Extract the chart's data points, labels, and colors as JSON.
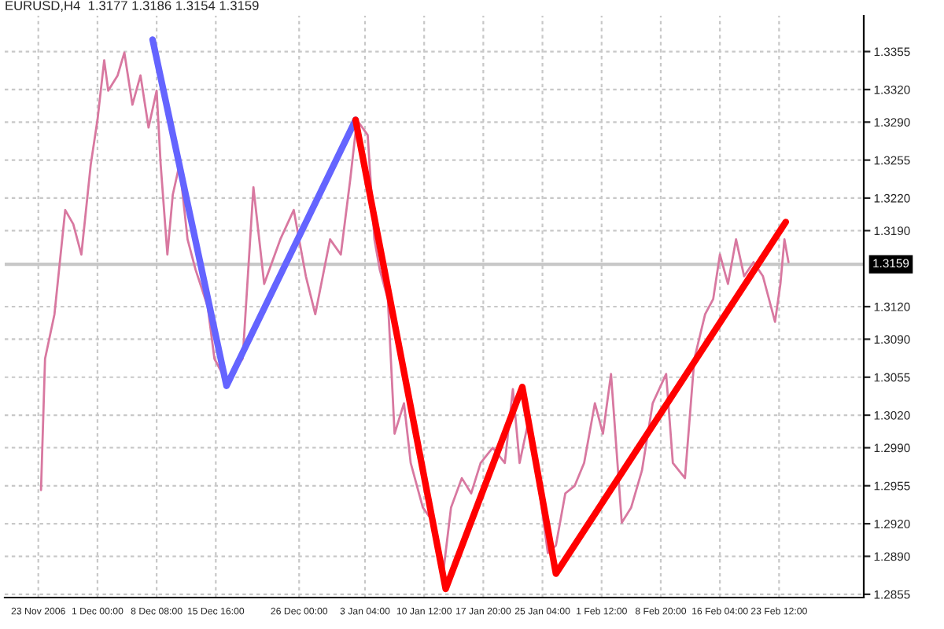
{
  "chart_data": {
    "type": "line",
    "title": "EURUSD,H4  1.3177 1.3186 1.3154 1.3159",
    "xlim": [
      "2006-11-19T12:00",
      "2007-03-06T00:00"
    ],
    "ylim": [
      1.2852,
      1.3388
    ],
    "xticks": [
      {
        "value": "2006-11-23T16:00",
        "label": "23 Nov 2006"
      },
      {
        "value": "2006-12-01T00:00",
        "label": "1 Dec 00:00"
      },
      {
        "value": "2006-12-08T08:00",
        "label": "8 Dec 08:00"
      },
      {
        "value": "2006-12-15T16:00",
        "label": "15 Dec 16:00"
      },
      {
        "value": "2006-12-26T00:00",
        "label": "26 Dec 00:00"
      },
      {
        "value": "2007-01-03T04:00",
        "label": "3 Jan 04:00"
      },
      {
        "value": "2007-01-10T12:00",
        "label": "10 Jan 12:00"
      },
      {
        "value": "2007-01-17T20:00",
        "label": "17 Jan 20:00"
      },
      {
        "value": "2007-01-25T04:00",
        "label": "25 Jan 04:00"
      },
      {
        "value": "2007-02-01T12:00",
        "label": "1 Feb 12:00"
      },
      {
        "value": "2007-02-08T20:00",
        "label": "8 Feb 20:00"
      },
      {
        "value": "2007-02-16T04:00",
        "label": "16 Feb 04:00"
      },
      {
        "value": "2007-02-23T12:00",
        "label": "23 Feb 12:00"
      }
    ],
    "yticks": [
      {
        "value": 1.2855,
        "label": "1.2855"
      },
      {
        "value": 1.289,
        "label": "1.2890"
      },
      {
        "value": 1.292,
        "label": "1.2920"
      },
      {
        "value": 1.2955,
        "label": "1.2955"
      },
      {
        "value": 1.299,
        "label": "1.2990"
      },
      {
        "value": 1.302,
        "label": "1.3020"
      },
      {
        "value": 1.3055,
        "label": "1.3055"
      },
      {
        "value": 1.309,
        "label": "1.3090"
      },
      {
        "value": 1.312,
        "label": "1.3120"
      },
      {
        "value": 1.319,
        "label": "1.3190"
      },
      {
        "value": 1.322,
        "label": "1.3220"
      },
      {
        "value": 1.3255,
        "label": "1.3255"
      },
      {
        "value": 1.329,
        "label": "1.3290"
      },
      {
        "value": 1.332,
        "label": "1.3320"
      },
      {
        "value": 1.3355,
        "label": "1.3355"
      }
    ],
    "grid": true,
    "line_style": "dashed",
    "ref_lines": [
      {
        "axis": "y",
        "value": 1.3159,
        "label": "1.3159",
        "color": "#c8c8c8"
      }
    ],
    "series": [
      {
        "color": "#d878a0",
        "line_style": "solid",
        "x": [
          "2006-11-24T00:00",
          "2006-11-24T12:00",
          "2006-11-25T16:00",
          "2006-11-27T00:00",
          "2006-11-28T00:00",
          "2006-11-29T00:00",
          "2006-11-30T04:00",
          "2006-12-01T00:00",
          "2006-12-01T20:00",
          "2006-12-02T08:00",
          "2006-12-03T12:00",
          "2006-12-04T08:00",
          "2006-12-05T08:00",
          "2006-12-06T08:00",
          "2006-12-07T08:00",
          "2006-12-08T08:00",
          "2006-12-08T20:00",
          "2006-12-09T16:00",
          "2006-12-10T08:00",
          "2006-12-11T04:00",
          "2006-12-12T04:00",
          "2006-12-13T04:00",
          "2006-12-14T16:00",
          "2006-12-15T12:00",
          "2006-12-17T00:00",
          "2006-12-19T00:00",
          "2006-12-20T08:00",
          "2006-12-21T16:00",
          "2006-12-23T16:00",
          "2006-12-25T08:00",
          "2006-12-26T20:00",
          "2006-12-28T00:00",
          "2006-12-29T20:00",
          "2006-12-31T04:00",
          "2007-01-01T08:00",
          "2007-01-02T04:00",
          "2007-01-03T12:00",
          "2007-01-04T08:00",
          "2007-01-05T00:00",
          "2007-01-06T00:00",
          "2007-01-06T20:00",
          "2007-01-08T00:00",
          "2007-01-08T20:00",
          "2007-01-10T08:00",
          "2007-01-11T16:00",
          "2007-01-12T20:00",
          "2007-01-13T20:00",
          "2007-01-15T04:00",
          "2007-01-16T08:00",
          "2007-01-17T12:00",
          "2007-01-19T00:00",
          "2007-01-20T12:00",
          "2007-01-21T12:00",
          "2007-01-22T08:00",
          "2007-01-23T12:00",
          "2007-01-24T20:00",
          "2007-01-25T20:00",
          "2007-01-26T20:00",
          "2007-01-28T00:00",
          "2007-01-29T04:00",
          "2007-01-30T08:00",
          "2007-01-31T16:00",
          "2007-02-01T16:00",
          "2007-02-02T16:00",
          "2007-02-04T00:00",
          "2007-02-05T04:00",
          "2007-02-06T12:00",
          "2007-02-07T20:00",
          "2007-02-09T12:00",
          "2007-02-10T08:00",
          "2007-02-11T20:00",
          "2007-02-13T00:00",
          "2007-02-14T08:00",
          "2007-02-15T08:00",
          "2007-02-16T04:00",
          "2007-02-17T04:00",
          "2007-02-18T04:00",
          "2007-02-19T04:00",
          "2007-02-20T08:00",
          "2007-02-21T12:00",
          "2007-02-22T12:00",
          "2007-02-23T00:00",
          "2007-02-23T16:00",
          "2007-02-24T04:00",
          "2007-02-24T16:00"
        ],
        "values": [
          1.2951,
          1.3072,
          1.3113,
          1.3209,
          1.3196,
          1.3168,
          1.3251,
          1.3292,
          1.3347,
          1.3319,
          1.3333,
          1.3354,
          1.3306,
          1.3333,
          1.3285,
          1.3319,
          1.3251,
          1.3168,
          1.3223,
          1.3251,
          1.3182,
          1.3154,
          1.312,
          1.3072,
          1.3051,
          1.3072,
          1.323,
          1.3141,
          1.3182,
          1.3209,
          1.3148,
          1.3113,
          1.3182,
          1.3168,
          1.3237,
          1.3292,
          1.3278,
          1.3182,
          1.3154,
          1.3127,
          1.3003,
          1.3031,
          1.2976,
          1.2935,
          1.2921,
          1.2873,
          1.2935,
          1.2962,
          1.2948,
          1.2976,
          1.299,
          1.2976,
          1.3044,
          1.2976,
          1.3017,
          1.2948,
          1.2893,
          1.29,
          1.2948,
          1.2955,
          1.2976,
          1.3031,
          1.3003,
          1.3058,
          1.2921,
          1.2935,
          1.2969,
          1.3031,
          1.3058,
          1.2976,
          1.2962,
          1.3072,
          1.3113,
          1.3127,
          1.3168,
          1.3141,
          1.3182,
          1.3148,
          1.3161,
          1.3148,
          1.312,
          1.3106,
          1.3141,
          1.3182,
          1.3161
        ]
      },
      {
        "color": "#6464ff",
        "line_style": "solid",
        "x": [
          "2006-12-07T20:00",
          "2006-12-17T00:00",
          "2007-01-02T00:00"
        ],
        "values": [
          1.3366,
          1.3047,
          1.3292
        ]
      },
      {
        "color": "#ff0000",
        "line_style": "solid",
        "x": [
          "2007-01-02T00:00",
          "2007-01-13T04:00",
          "2007-01-22T16:00",
          "2007-01-26T20:00",
          "2007-02-24T08:00"
        ],
        "values": [
          1.3292,
          1.286,
          1.3046,
          1.2874,
          1.3198
        ]
      }
    ]
  }
}
